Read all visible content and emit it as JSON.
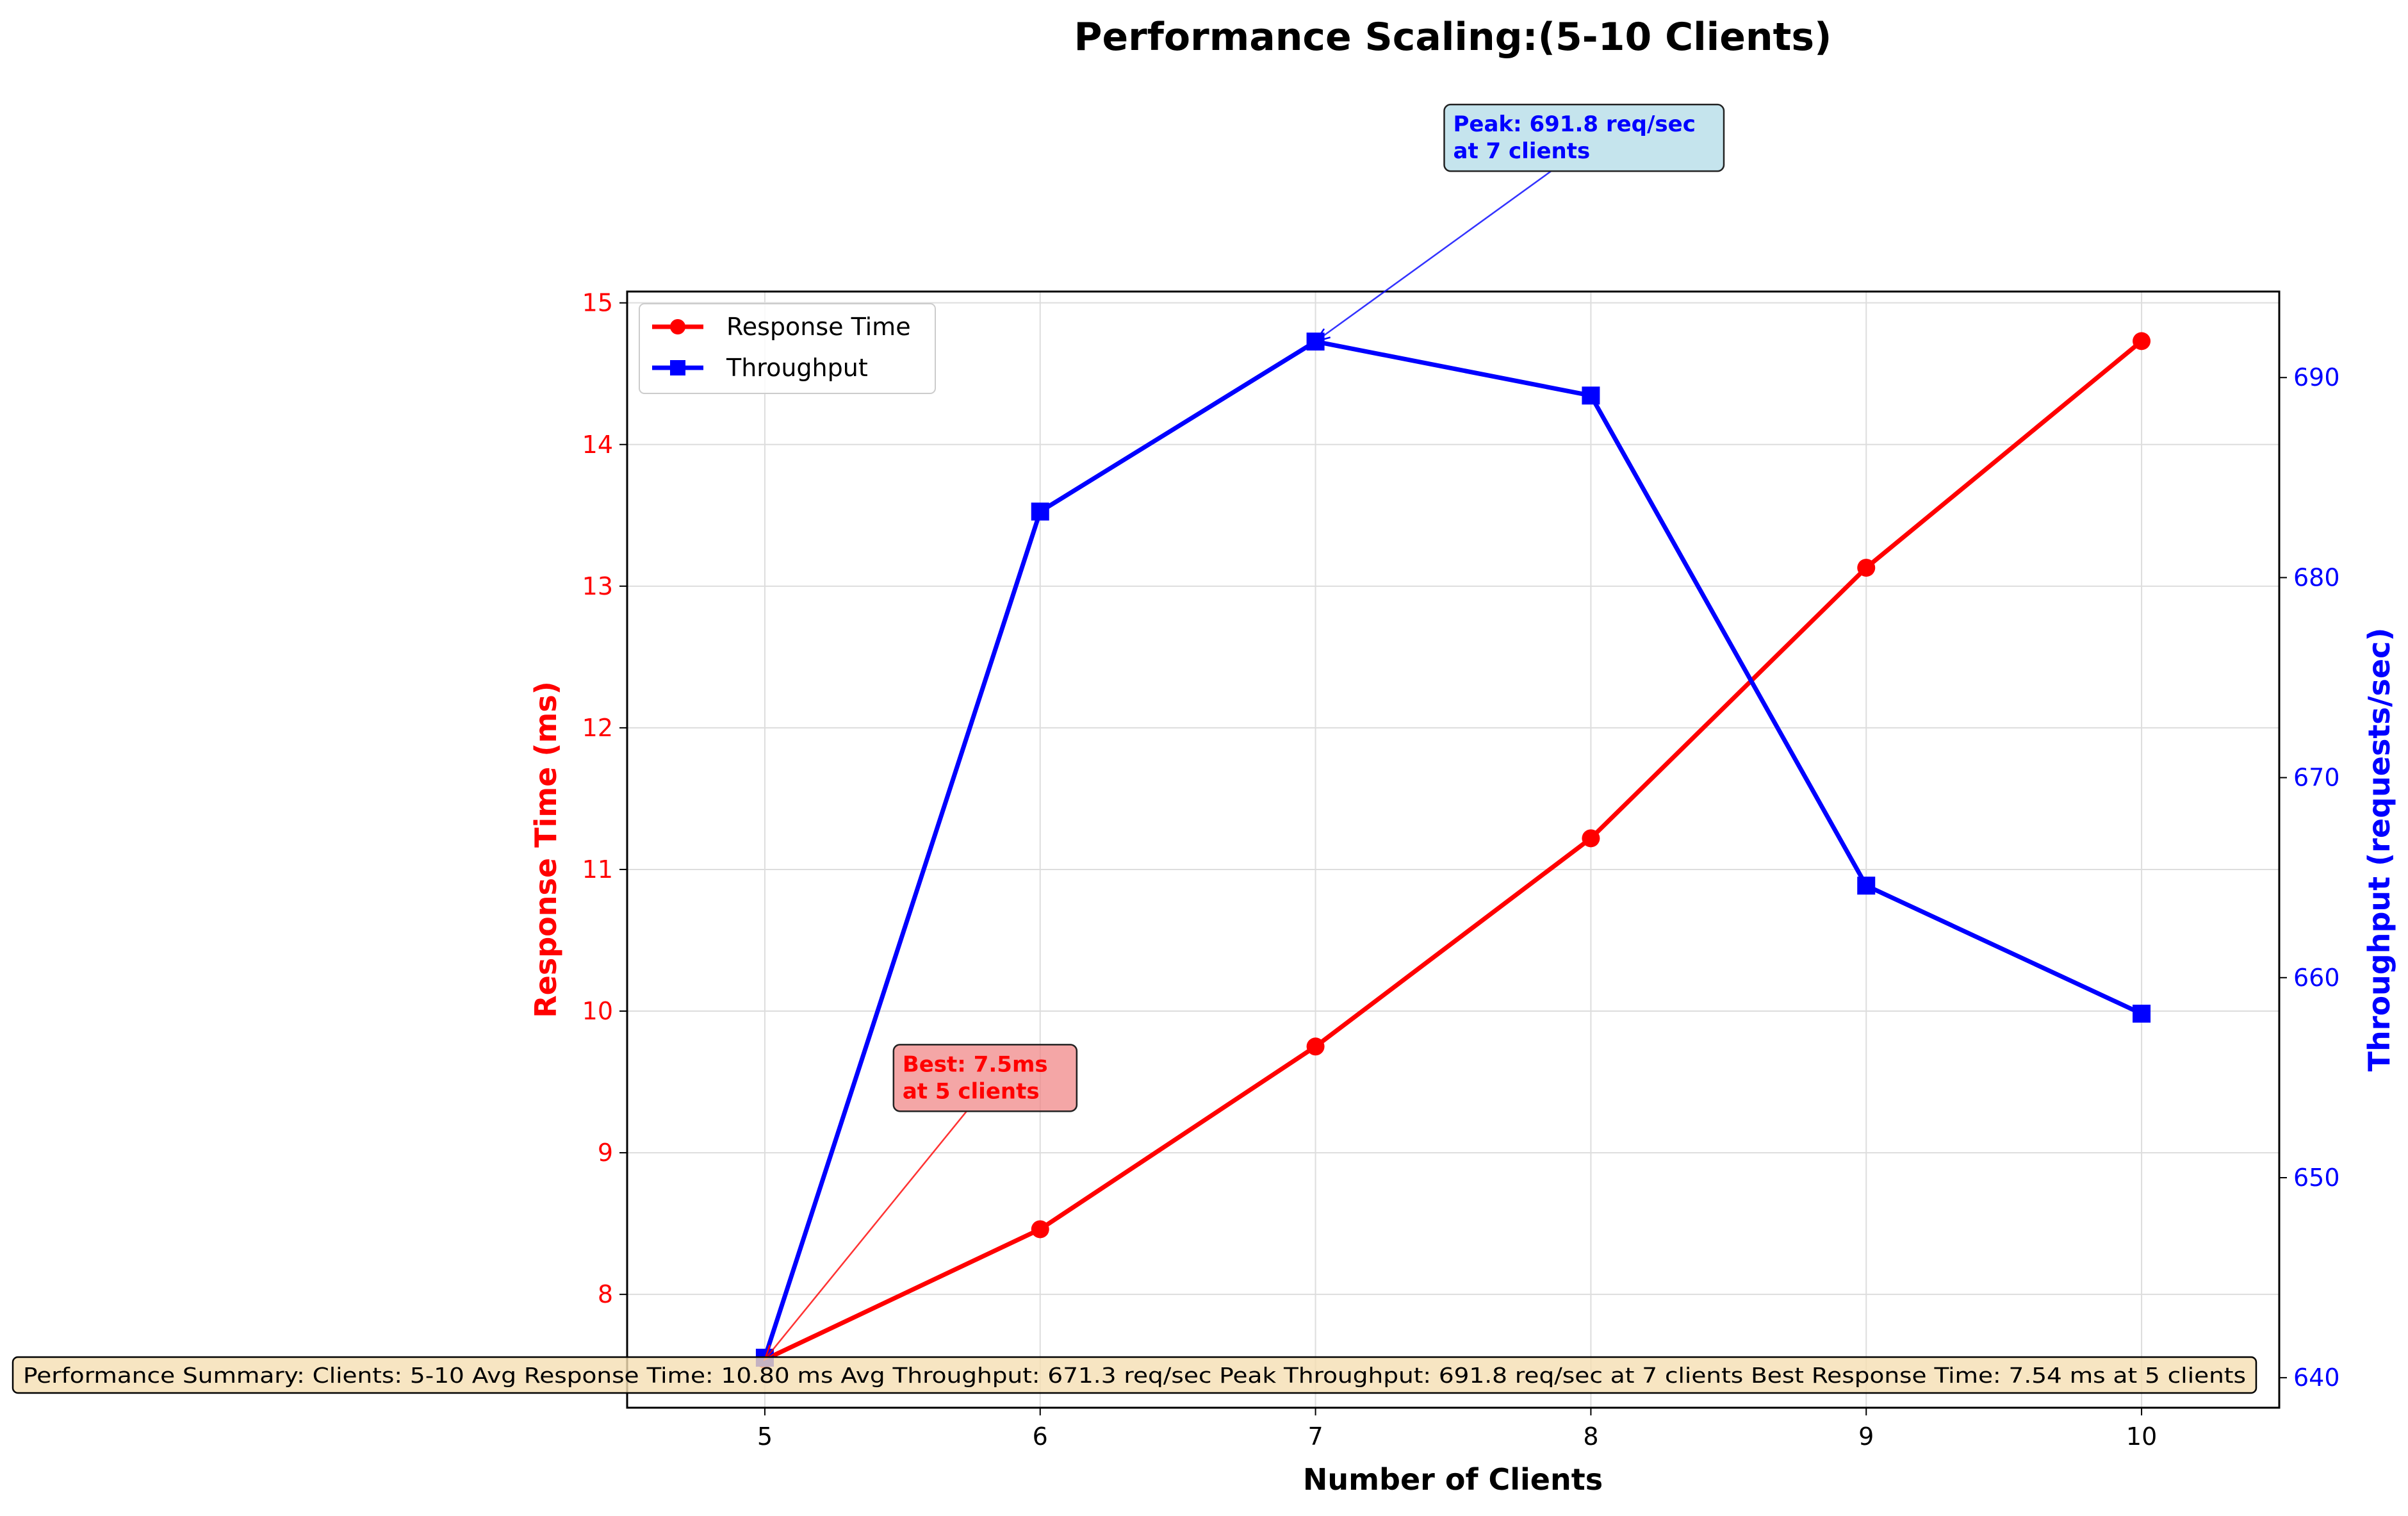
{
  "chart_data": {
    "type": "line",
    "title": "Performance Scaling:(5-10 Clients)",
    "xlabel": "Number of Clients",
    "ylabel_left": "Response Time (ms)",
    "ylabel_right": "Throughput (requests/sec)",
    "x": [
      5,
      6,
      7,
      8,
      9,
      10
    ],
    "xlim": [
      4.5,
      10.5
    ],
    "ylim_left": [
      7.2,
      15.08
    ],
    "ylim_right": [
      638.5,
      694.3
    ],
    "x_ticks": [
      "5",
      "6",
      "7",
      "8",
      "9",
      "10"
    ],
    "y_left_ticks": [
      "8",
      "9",
      "10",
      "11",
      "12",
      "13",
      "14",
      "15"
    ],
    "y_right_ticks": [
      "640",
      "650",
      "660",
      "670",
      "680",
      "690"
    ],
    "grid": true,
    "legend_position": "top-left",
    "colors": {
      "response": "#ff0000",
      "throughput": "#0000ff",
      "grid": "#dddddd"
    },
    "series": [
      {
        "name": "Response Time",
        "axis": "left",
        "marker": "circle",
        "values": [
          7.54,
          8.46,
          9.75,
          11.22,
          13.13,
          14.73
        ]
      },
      {
        "name": "Throughput",
        "axis": "right",
        "marker": "square",
        "values": [
          641.0,
          683.3,
          691.8,
          689.1,
          664.6,
          658.2
        ]
      }
    ],
    "annotations": [
      {
        "lines": [
          "Peak: 691.8 req/sec",
          "at 7 clients"
        ],
        "color": "#0000ff",
        "box_color": "#add8e6",
        "points_to": {
          "x": 7,
          "y": 691.8,
          "axis": "right"
        },
        "text_at": {
          "x": 7.5,
          "y": 703.2,
          "axis": "right"
        }
      },
      {
        "lines": [
          "Best: 7.5ms",
          "at 5 clients"
        ],
        "color": "#ff0000",
        "box_color": "#f08080",
        "points_to": {
          "x": 5,
          "y": 7.54,
          "axis": "left"
        },
        "text_at": {
          "x": 5.5,
          "y": 9.7,
          "axis": "left"
        }
      }
    ],
    "summary_text": "Performance Summary: Clients: 5-10 Avg Response Time: 10.80 ms Avg Throughput: 671.3 req/sec Peak Throughput: 691.8 req/sec at 7 clients Best Response Time: 7.54 ms at 5 clients",
    "summary_box_color": "#f5deb3"
  }
}
